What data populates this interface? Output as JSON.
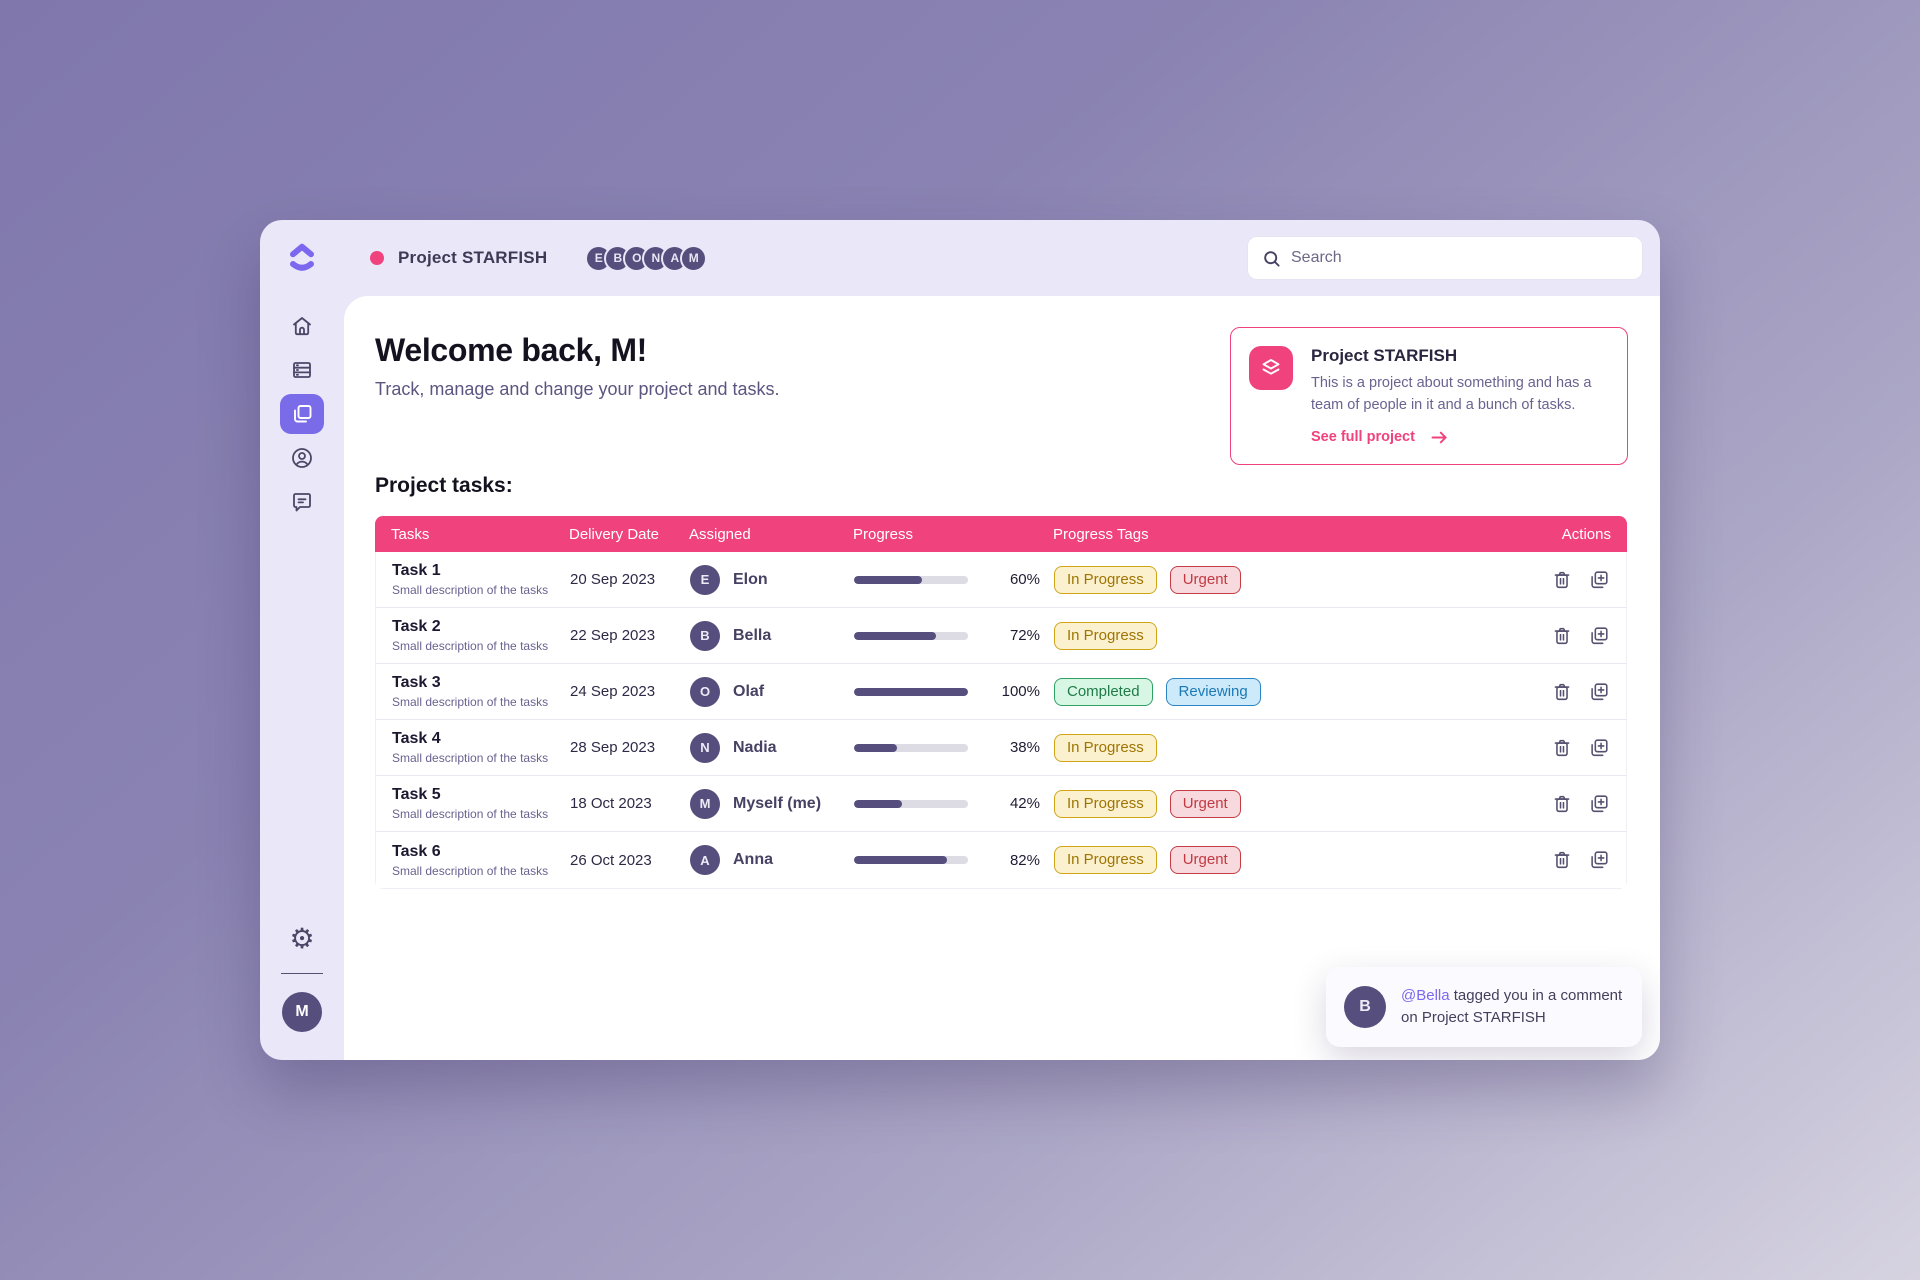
{
  "app": {
    "project_title": "Project STARFISH",
    "search_placeholder": "Search",
    "team_avatars": [
      "E",
      "B",
      "O",
      "N",
      "A",
      "M"
    ],
    "user_initial": "M"
  },
  "sidebar": {
    "items": [
      {
        "icon": "home"
      },
      {
        "icon": "board-list"
      },
      {
        "icon": "pages",
        "active": true
      },
      {
        "icon": "profile"
      },
      {
        "icon": "comments"
      }
    ],
    "settings_icon": "gear",
    "user_initial": "M"
  },
  "welcome": {
    "heading": "Welcome back, M!",
    "subtitle": "Track, manage and change your project and tasks."
  },
  "project_card": {
    "title": "Project STARFISH",
    "description": "This is a project about something and has a team of people in it and a bunch of tasks.",
    "link_label": "See full project"
  },
  "tasks_section": {
    "heading": "Project tasks:",
    "columns": [
      "Tasks",
      "Delivery Date",
      "Assigned",
      "Progress",
      "Progress Tags",
      "Actions"
    ],
    "rows": [
      {
        "title": "Task 1",
        "description": "Small description of the tasks",
        "date": "20 Sep 2023",
        "initial": "E",
        "assignee": "Elon",
        "progress": 60,
        "progress_label": "60%",
        "tags": [
          {
            "label": "In Progress",
            "type": "in-progress"
          },
          {
            "label": "Urgent",
            "type": "urgent"
          }
        ]
      },
      {
        "title": "Task 2",
        "description": "Small description of the tasks",
        "date": "22 Sep 2023",
        "initial": "B",
        "assignee": "Bella",
        "progress": 72,
        "progress_label": "72%",
        "tags": [
          {
            "label": "In Progress",
            "type": "in-progress"
          }
        ]
      },
      {
        "title": "Task 3",
        "description": "Small description of the tasks",
        "date": "24 Sep 2023",
        "initial": "O",
        "assignee": "Olaf",
        "progress": 100,
        "progress_label": "100%",
        "tags": [
          {
            "label": "Completed",
            "type": "completed"
          },
          {
            "label": "Reviewing",
            "type": "reviewing"
          }
        ]
      },
      {
        "title": "Task 4",
        "description": "Small description of the tasks",
        "date": "28 Sep 2023",
        "initial": "N",
        "assignee": "Nadia",
        "progress": 38,
        "progress_label": "38%",
        "tags": [
          {
            "label": "In Progress",
            "type": "in-progress"
          }
        ]
      },
      {
        "title": "Task 5",
        "description": "Small description of the tasks",
        "date": "18 Oct 2023",
        "initial": "M",
        "assignee": "Myself (me)",
        "progress": 42,
        "progress_label": "42%",
        "tags": [
          {
            "label": "In Progress",
            "type": "in-progress"
          },
          {
            "label": "Urgent",
            "type": "urgent"
          }
        ]
      },
      {
        "title": "Task 6",
        "description": "Small description of the tasks",
        "date": "26 Oct 2023",
        "initial": "A",
        "assignee": "Anna",
        "progress": 82,
        "progress_label": "82%",
        "tags": [
          {
            "label": "In Progress",
            "type": "in-progress"
          },
          {
            "label": "Urgent",
            "type": "urgent"
          }
        ]
      }
    ]
  },
  "toast": {
    "initial": "B",
    "mention": "@Bella",
    "message": " tagged you in a comment on Project STARFISH"
  },
  "colors": {
    "accent_pink": "#F0427C",
    "brand_purple": "#7B68EE",
    "sidebar_active": "#7A6BE8",
    "avatar_purple": "#564E7D",
    "progress_fill": "#564E7D",
    "tag_in_progress": "#D2A516",
    "tag_urgent": "#C43C44",
    "tag_completed": "#2FA265",
    "tag_reviewing": "#2B85C4"
  }
}
